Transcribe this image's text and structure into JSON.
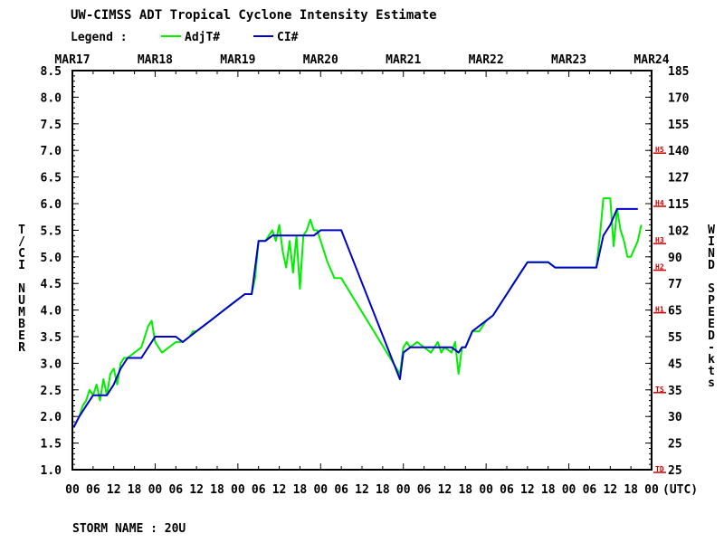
{
  "chart_data": {
    "type": "line",
    "title": "UW-CIMSS ADT Tropical Cyclone Intensity Estimate",
    "legend_label": "Legend :",
    "legend_placement": "top-left",
    "series": [
      {
        "name": "AdjT#",
        "color": "#00ee00",
        "points": [
          [
            0.2,
            1.8
          ],
          [
            1.0,
            2.0
          ],
          [
            1.5,
            2.2
          ],
          [
            2.0,
            2.3
          ],
          [
            2.5,
            2.5
          ],
          [
            3.0,
            2.4
          ],
          [
            3.5,
            2.6
          ],
          [
            4.0,
            2.3
          ],
          [
            4.5,
            2.7
          ],
          [
            5.0,
            2.4
          ],
          [
            5.5,
            2.8
          ],
          [
            6.0,
            2.9
          ],
          [
            6.5,
            2.6
          ],
          [
            7.0,
            3.0
          ],
          [
            7.5,
            3.1
          ],
          [
            8.0,
            3.1
          ],
          [
            9.0,
            3.2
          ],
          [
            10.0,
            3.3
          ],
          [
            10.5,
            3.5
          ],
          [
            11.0,
            3.7
          ],
          [
            11.5,
            3.8
          ],
          [
            12.0,
            3.4
          ],
          [
            13.0,
            3.2
          ],
          [
            14.0,
            3.3
          ],
          [
            15.0,
            3.4
          ],
          [
            16.0,
            3.4
          ],
          [
            17.0,
            3.5
          ],
          [
            17.5,
            3.6
          ],
          [
            18.0,
            3.6
          ],
          [
            19.0,
            3.7
          ],
          [
            20.0,
            3.8
          ],
          [
            21.0,
            3.9
          ],
          [
            22.0,
            4.0
          ],
          [
            23.0,
            4.1
          ],
          [
            24.0,
            4.2
          ],
          [
            25.0,
            4.3
          ],
          [
            26.0,
            4.3
          ],
          [
            26.5,
            4.6
          ],
          [
            27.0,
            5.3
          ],
          [
            28.0,
            5.3
          ],
          [
            28.5,
            5.4
          ],
          [
            29.0,
            5.5
          ],
          [
            29.5,
            5.3
          ],
          [
            30.0,
            5.6
          ],
          [
            30.5,
            5.1
          ],
          [
            31.0,
            4.8
          ],
          [
            31.5,
            5.3
          ],
          [
            32.0,
            4.7
          ],
          [
            32.5,
            5.4
          ],
          [
            33.0,
            4.4
          ],
          [
            33.5,
            5.4
          ],
          [
            34.0,
            5.5
          ],
          [
            34.5,
            5.7
          ],
          [
            35.0,
            5.5
          ],
          [
            35.5,
            5.5
          ],
          [
            36.0,
            5.3
          ],
          [
            37.0,
            4.9
          ],
          [
            38.0,
            4.6
          ],
          [
            39.0,
            4.6
          ],
          [
            47.5,
            2.8
          ],
          [
            48.0,
            3.3
          ],
          [
            48.5,
            3.4
          ],
          [
            49.0,
            3.3
          ],
          [
            50.0,
            3.4
          ],
          [
            51.0,
            3.3
          ],
          [
            52.0,
            3.2
          ],
          [
            53.0,
            3.4
          ],
          [
            53.5,
            3.2
          ],
          [
            54.0,
            3.3
          ],
          [
            55.0,
            3.2
          ],
          [
            55.5,
            3.4
          ],
          [
            56.0,
            2.8
          ],
          [
            56.5,
            3.3
          ],
          [
            57.0,
            3.3
          ],
          [
            58.0,
            3.6
          ],
          [
            59.0,
            3.6
          ],
          [
            60.0,
            3.8
          ],
          [
            61.0,
            3.9
          ],
          [
            62.0,
            4.1
          ],
          [
            63.0,
            4.3
          ],
          [
            64.0,
            4.5
          ],
          [
            65.0,
            4.7
          ],
          [
            66.0,
            4.9
          ],
          [
            67.0,
            4.9
          ],
          [
            69.0,
            4.9
          ],
          [
            70.0,
            4.8
          ],
          [
            75.0,
            4.8
          ],
          [
            76.0,
            4.8
          ],
          [
            76.5,
            5.4
          ],
          [
            77.0,
            6.1
          ],
          [
            78.0,
            6.1
          ],
          [
            78.5,
            5.2
          ],
          [
            79.0,
            5.9
          ],
          [
            79.5,
            5.5
          ],
          [
            80.0,
            5.3
          ],
          [
            80.5,
            5.0
          ],
          [
            81.0,
            5.0
          ],
          [
            82.0,
            5.3
          ],
          [
            82.5,
            5.6
          ]
        ]
      },
      {
        "name": "CI#",
        "color": "#0000cc",
        "points": [
          [
            0.2,
            1.8
          ],
          [
            1.0,
            2.0
          ],
          [
            2.0,
            2.2
          ],
          [
            3.0,
            2.4
          ],
          [
            4.0,
            2.4
          ],
          [
            5.0,
            2.4
          ],
          [
            5.5,
            2.5
          ],
          [
            6.0,
            2.6
          ],
          [
            7.0,
            2.9
          ],
          [
            8.0,
            3.1
          ],
          [
            9.0,
            3.1
          ],
          [
            10.0,
            3.1
          ],
          [
            11.0,
            3.3
          ],
          [
            12.0,
            3.5
          ],
          [
            15.0,
            3.5
          ],
          [
            16.0,
            3.4
          ],
          [
            17.0,
            3.5
          ],
          [
            18.0,
            3.6
          ],
          [
            19.0,
            3.7
          ],
          [
            20.0,
            3.8
          ],
          [
            21.0,
            3.9
          ],
          [
            22.0,
            4.0
          ],
          [
            23.0,
            4.1
          ],
          [
            24.0,
            4.2
          ],
          [
            25.0,
            4.3
          ],
          [
            26.0,
            4.3
          ],
          [
            27.0,
            5.3
          ],
          [
            28.0,
            5.3
          ],
          [
            29.0,
            5.4
          ],
          [
            30.0,
            5.4
          ],
          [
            31.0,
            5.4
          ],
          [
            32.0,
            5.4
          ],
          [
            33.0,
            5.4
          ],
          [
            34.0,
            5.4
          ],
          [
            35.0,
            5.4
          ],
          [
            36.0,
            5.5
          ],
          [
            38.0,
            5.5
          ],
          [
            39.0,
            5.5
          ],
          [
            47.5,
            2.7
          ],
          [
            48.0,
            3.2
          ],
          [
            49.0,
            3.3
          ],
          [
            55.0,
            3.3
          ],
          [
            56.0,
            3.2
          ],
          [
            56.5,
            3.3
          ],
          [
            57.0,
            3.3
          ],
          [
            58.0,
            3.6
          ],
          [
            59.0,
            3.7
          ],
          [
            60.0,
            3.8
          ],
          [
            61.0,
            3.9
          ],
          [
            62.0,
            4.1
          ],
          [
            63.0,
            4.3
          ],
          [
            64.0,
            4.5
          ],
          [
            65.0,
            4.7
          ],
          [
            66.0,
            4.9
          ],
          [
            67.0,
            4.9
          ],
          [
            69.0,
            4.9
          ],
          [
            70.0,
            4.8
          ],
          [
            76.0,
            4.8
          ],
          [
            77.0,
            5.4
          ],
          [
            78.0,
            5.6
          ],
          [
            79.0,
            5.9
          ],
          [
            80.0,
            5.9
          ],
          [
            81.0,
            5.9
          ],
          [
            82.0,
            5.9
          ]
        ]
      }
    ],
    "x_axis": {
      "unit": "6-hour steps since MAR17 00 UTC",
      "range": [
        0,
        84
      ],
      "tick_labels": [
        "00",
        "06",
        "12",
        "18",
        "00",
        "06",
        "12",
        "18",
        "00",
        "06",
        "12",
        "18",
        "00",
        "06",
        "12",
        "18",
        "00",
        "06",
        "12",
        "18",
        "00",
        "06",
        "12",
        "18",
        "00",
        "06",
        "12",
        "18",
        "00"
      ],
      "suffix_label": "(UTC)",
      "date_labels": [
        "MAR17",
        "MAR18",
        "MAR19",
        "MAR20",
        "MAR21",
        "MAR22",
        "MAR23",
        "MAR24"
      ]
    },
    "y_left": {
      "label": "T/CI NUMBER",
      "range": [
        1.0,
        8.5
      ],
      "tick_labels": [
        "1.0",
        "1.5",
        "2.0",
        "2.5",
        "3.0",
        "3.5",
        "4.0",
        "4.5",
        "5.0",
        "5.5",
        "6.0",
        "6.5",
        "7.0",
        "7.5",
        "8.0",
        "8.5"
      ]
    },
    "y_right": {
      "label": "WIND SPEED-kts",
      "tick_labels": [
        "25",
        "25",
        "30",
        "35",
        "45",
        "55",
        "65",
        "77",
        "90",
        "102",
        "115",
        "127",
        "140",
        "155",
        "170",
        "185"
      ],
      "categories": [
        {
          "label": "TD",
          "at_ci": 1.0
        },
        {
          "label": "TS",
          "at_ci": 2.5
        },
        {
          "label": "H1",
          "at_ci": 4.0
        },
        {
          "label": "H2",
          "at_ci": 4.8
        },
        {
          "label": "H3",
          "at_ci": 5.3
        },
        {
          "label": "H4",
          "at_ci": 6.0
        },
        {
          "label": "H5",
          "at_ci": 7.0
        }
      ],
      "category_color": "#cc0000"
    },
    "grid": false
  },
  "footer": {
    "storm_name": "STORM NAME : 20U"
  }
}
